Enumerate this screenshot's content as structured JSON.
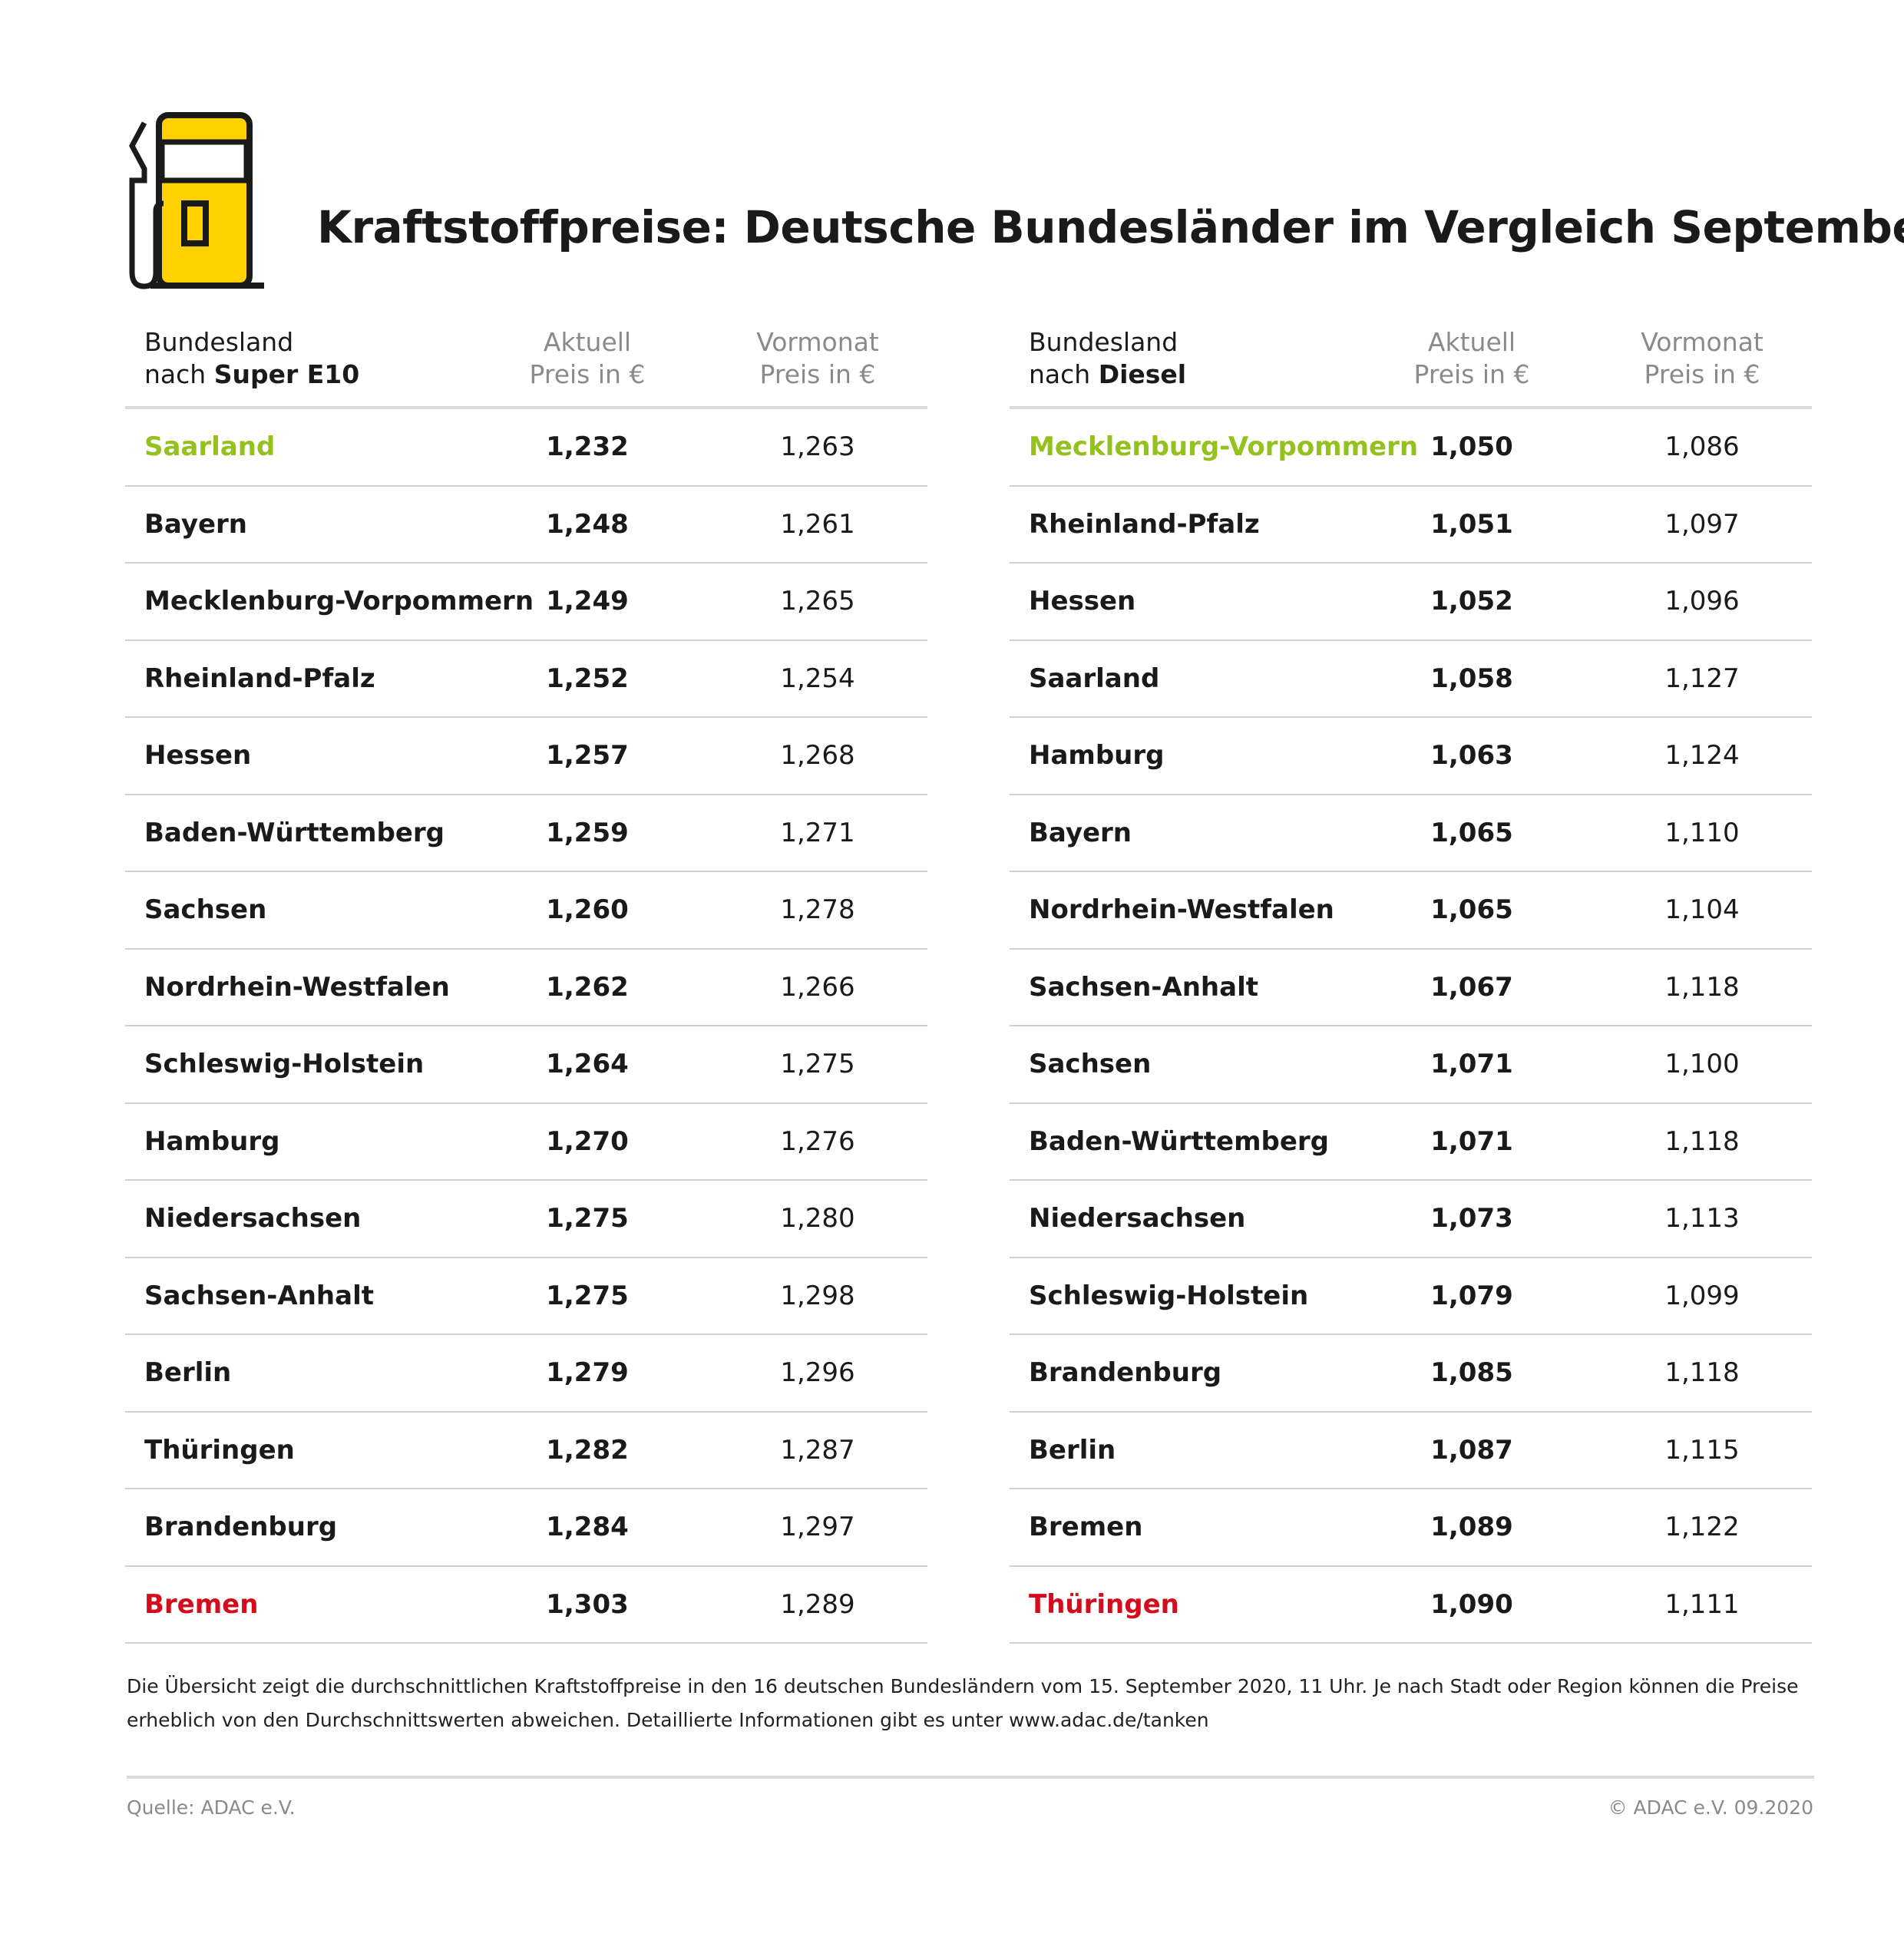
{
  "title": "Kraftstoffpreise: Deutsche Bundesländer im Vergleich September",
  "colors": {
    "icon_fill": "#FFD100",
    "best": "#95c11f",
    "worst": "#d40c1b"
  },
  "icon": "fuel-pump-icon",
  "tables": [
    {
      "header": {
        "line1": "Bundesland",
        "line2_prefix": "nach ",
        "line2_bold": "Super E10",
        "aktuell_1": "Aktuell",
        "aktuell_2": "Preis in €",
        "vormonat_1": "Vormonat",
        "vormonat_2": "Preis in €"
      },
      "rows": [
        [
          "Saarland",
          "1,232",
          "1,263"
        ],
        [
          "Bayern",
          "1,248",
          "1,261"
        ],
        [
          "Mecklenburg-Vorpommern",
          "1,249",
          "1,265"
        ],
        [
          "Rheinland-Pfalz",
          "1,252",
          "1,254"
        ],
        [
          "Hessen",
          "1,257",
          "1,268"
        ],
        [
          "Baden-Württemberg",
          "1,259",
          "1,271"
        ],
        [
          "Sachsen",
          "1,260",
          "1,278"
        ],
        [
          "Nordrhein-Westfalen",
          "1,262",
          "1,266"
        ],
        [
          "Schleswig-Holstein",
          "1,264",
          "1,275"
        ],
        [
          "Hamburg",
          "1,270",
          "1,276"
        ],
        [
          "Niedersachsen",
          "1,275",
          "1,280"
        ],
        [
          "Sachsen-Anhalt",
          "1,275",
          "1,298"
        ],
        [
          "Berlin",
          "1,279",
          "1,296"
        ],
        [
          "Thüringen",
          "1,282",
          "1,287"
        ],
        [
          "Brandenburg",
          "1,284",
          "1,297"
        ],
        [
          "Bremen",
          "1,303",
          "1,289"
        ]
      ]
    },
    {
      "header": {
        "line1": "Bundesland",
        "line2_prefix": "nach ",
        "line2_bold": "Diesel",
        "aktuell_1": "Aktuell",
        "aktuell_2": "Preis in €",
        "vormonat_1": "Vormonat",
        "vormonat_2": "Preis in €"
      },
      "rows": [
        [
          "Mecklenburg-Vorpommern",
          "1,050",
          "1,086"
        ],
        [
          "Rheinland-Pfalz",
          "1,051",
          "1,097"
        ],
        [
          "Hessen",
          "1,052",
          "1,096"
        ],
        [
          "Saarland",
          "1,058",
          "1,127"
        ],
        [
          "Hamburg",
          "1,063",
          "1,124"
        ],
        [
          "Bayern",
          "1,065",
          "1,110"
        ],
        [
          "Nordrhein-Westfalen",
          "1,065",
          "1,104"
        ],
        [
          "Sachsen-Anhalt",
          "1,067",
          "1,118"
        ],
        [
          "Sachsen",
          "1,071",
          "1,100"
        ],
        [
          "Baden-Württemberg",
          "1,071",
          "1,118"
        ],
        [
          "Niedersachsen",
          "1,073",
          "1,113"
        ],
        [
          "Schleswig-Holstein",
          "1,079",
          "1,099"
        ],
        [
          "Brandenburg",
          "1,085",
          "1,118"
        ],
        [
          "Berlin",
          "1,087",
          "1,115"
        ],
        [
          "Bremen",
          "1,089",
          "1,122"
        ],
        [
          "Thüringen",
          "1,090",
          "1,111"
        ]
      ]
    }
  ],
  "note": "Die Übersicht zeigt die durchschnittlichen Kraftstoffpreise in den 16 deutschen Bundesländern vom 15. September 2020, 11 Uhr.  Je nach Stadt oder Region können die Preise erheblich von den Durchschnittswerten abweichen. Detaillierte Informationen gibt es unter www.adac.de/tanken",
  "source": "Quelle: ADAC e.V.",
  "copyright": "© ADAC e.V. 09.2020"
}
